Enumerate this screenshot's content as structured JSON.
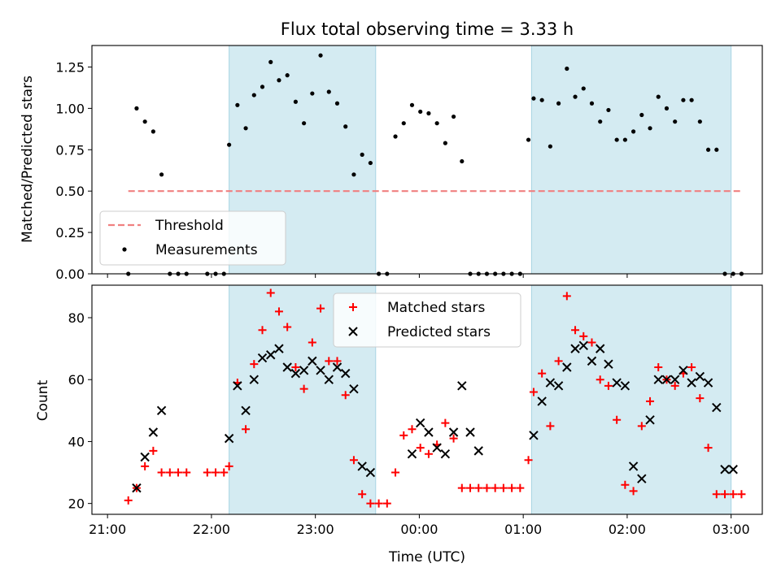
{
  "figure": {
    "title": "Flux total observing time = 3.33 h"
  },
  "colors": {
    "shade": "#d4ebf2",
    "shade_edge": "#a8d4e3",
    "threshold": "#f08080",
    "matched": "#ff0000",
    "predicted": "#000000",
    "measurement": "#000000"
  },
  "chart_data": [
    {
      "type": "scatter",
      "title": "Flux total observing time = 3.33 h",
      "xlabel": "",
      "ylabel": "Matched/Predicted stars",
      "xlim": [
        -0.15,
        6.3
      ],
      "ylim": [
        0,
        1.38
      ],
      "yticks": [
        0,
        0.25,
        0.5,
        0.75,
        1.0,
        1.25
      ],
      "ytick_labels": [
        "0.00",
        "0.25",
        "0.50",
        "0.75",
        "1.00",
        "1.25"
      ],
      "shaded_intervals": [
        [
          1.17,
          2.58
        ],
        [
          4.08,
          6.0
        ]
      ],
      "threshold": {
        "name": "Threshold",
        "value": 0.5,
        "x": [
          0.2,
          6.1
        ]
      },
      "legend": {
        "position": "lower-left",
        "entries": [
          "Threshold",
          "Measurements"
        ]
      },
      "series": [
        {
          "name": "Measurements",
          "x": [
            0.2,
            0.28,
            0.36,
            0.44,
            0.52,
            0.6,
            0.68,
            0.76,
            0.96,
            1.04,
            1.12,
            1.17,
            1.25,
            1.33,
            1.41,
            1.49,
            1.57,
            1.65,
            1.73,
            1.81,
            1.89,
            1.97,
            2.05,
            2.13,
            2.21,
            2.29,
            2.37,
            2.45,
            2.53,
            2.61,
            2.69,
            2.77,
            2.85,
            2.93,
            3.01,
            3.09,
            3.17,
            3.25,
            3.33,
            3.41,
            3.49,
            3.57,
            3.65,
            3.73,
            3.81,
            3.89,
            3.97,
            4.05,
            4.1,
            4.18,
            4.26,
            4.34,
            4.42,
            4.5,
            4.58,
            4.66,
            4.74,
            4.82,
            4.9,
            4.98,
            5.06,
            5.14,
            5.22,
            5.3,
            5.38,
            5.46,
            5.54,
            5.62,
            5.7,
            5.78,
            5.86,
            5.94,
            6.02,
            6.1
          ],
          "y": [
            0,
            1.0,
            0.92,
            0.86,
            0.6,
            0,
            0,
            0,
            0,
            0,
            0,
            0.78,
            1.02,
            0.88,
            1.08,
            1.13,
            1.28,
            1.17,
            1.2,
            1.04,
            0.91,
            1.09,
            1.32,
            1.1,
            1.03,
            0.89,
            0.6,
            0.72,
            0.67,
            0,
            0,
            0.83,
            0.91,
            1.02,
            0.98,
            0.97,
            0.91,
            0.79,
            0.95,
            0.68,
            0,
            0,
            0,
            0,
            0,
            0,
            0,
            0.81,
            1.06,
            1.05,
            0.77,
            1.03,
            1.24,
            1.07,
            1.12,
            1.03,
            0.92,
            0.99,
            0.81,
            0.81,
            0.86,
            0.96,
            0.88,
            1.07,
            1.0,
            0.92,
            1.05,
            1.05,
            0.92,
            0.75,
            0.75,
            0,
            0,
            0
          ]
        }
      ]
    },
    {
      "type": "scatter",
      "xlabel": "Time (UTC)",
      "ylabel": "Count",
      "xlim": [
        -0.15,
        6.3
      ],
      "ylim": [
        16.5,
        90.5
      ],
      "yticks": [
        20,
        40,
        60,
        80
      ],
      "xticks": [
        0,
        1,
        2,
        3,
        4,
        5,
        6
      ],
      "xtick_labels": [
        "21:00",
        "22:00",
        "23:00",
        "00:00",
        "01:00",
        "02:00",
        "03:00"
      ],
      "shaded_intervals": [
        [
          1.17,
          2.58
        ],
        [
          4.08,
          6.0
        ]
      ],
      "legend": {
        "position": "upper-center",
        "entries": [
          "Matched stars",
          "Predicted stars"
        ]
      },
      "series": [
        {
          "name": "Matched stars",
          "marker": "plus",
          "x": [
            0.2,
            0.28,
            0.36,
            0.44,
            0.52,
            0.6,
            0.68,
            0.76,
            0.96,
            1.04,
            1.12,
            1.17,
            1.25,
            1.33,
            1.41,
            1.49,
            1.57,
            1.65,
            1.73,
            1.81,
            1.89,
            1.97,
            2.05,
            2.13,
            2.21,
            2.29,
            2.37,
            2.45,
            2.53,
            2.61,
            2.69,
            2.77,
            2.85,
            2.93,
            3.01,
            3.09,
            3.17,
            3.25,
            3.33,
            3.41,
            3.49,
            3.57,
            3.65,
            3.73,
            3.81,
            3.89,
            3.97,
            4.05,
            4.1,
            4.18,
            4.26,
            4.34,
            4.42,
            4.5,
            4.58,
            4.66,
            4.74,
            4.82,
            4.9,
            4.98,
            5.06,
            5.14,
            5.22,
            5.3,
            5.38,
            5.46,
            5.54,
            5.62,
            5.7,
            5.78,
            5.86,
            5.94,
            6.02,
            6.1
          ],
          "y": [
            21,
            25,
            32,
            37,
            30,
            30,
            30,
            30,
            30,
            30,
            30,
            32,
            59,
            44,
            65,
            76,
            88,
            82,
            77,
            64,
            57,
            72,
            83,
            66,
            66,
            55,
            34,
            23,
            20,
            20,
            20,
            30,
            42,
            44,
            38,
            36,
            39,
            46,
            41,
            25,
            25,
            25,
            25,
            25,
            25,
            25,
            25,
            34,
            56,
            62,
            45,
            66,
            87,
            76,
            74,
            72,
            60,
            58,
            47,
            26,
            24,
            45,
            53,
            64,
            60,
            58,
            62,
            64,
            54,
            38,
            23,
            23,
            23,
            23
          ]
        },
        {
          "name": "Predicted stars",
          "marker": "x",
          "x": [
            0.28,
            0.36,
            0.44,
            0.52,
            1.17,
            1.25,
            1.33,
            1.41,
            1.49,
            1.57,
            1.65,
            1.73,
            1.81,
            1.89,
            1.97,
            2.05,
            2.13,
            2.21,
            2.29,
            2.37,
            2.45,
            2.53,
            2.93,
            3.01,
            3.09,
            3.17,
            3.25,
            3.33,
            3.41,
            3.49,
            3.57,
            4.1,
            4.18,
            4.26,
            4.34,
            4.42,
            4.5,
            4.58,
            4.66,
            4.74,
            4.82,
            4.9,
            4.98,
            5.06,
            5.14,
            5.22,
            5.3,
            5.38,
            5.46,
            5.54,
            5.62,
            5.7,
            5.78,
            5.86,
            5.94,
            6.02
          ],
          "y": [
            25,
            35,
            43,
            50,
            41,
            58,
            50,
            60,
            67,
            68,
            70,
            64,
            62,
            63,
            66,
            63,
            60,
            64,
            62,
            57,
            32,
            30,
            36,
            46,
            43,
            38,
            36,
            43,
            58,
            43,
            37,
            42,
            53,
            59,
            58,
            64,
            70,
            71,
            66,
            70,
            65,
            59,
            58,
            32,
            28,
            47,
            60,
            60,
            60,
            63,
            59,
            61,
            59,
            51,
            31,
            31
          ]
        }
      ]
    }
  ]
}
